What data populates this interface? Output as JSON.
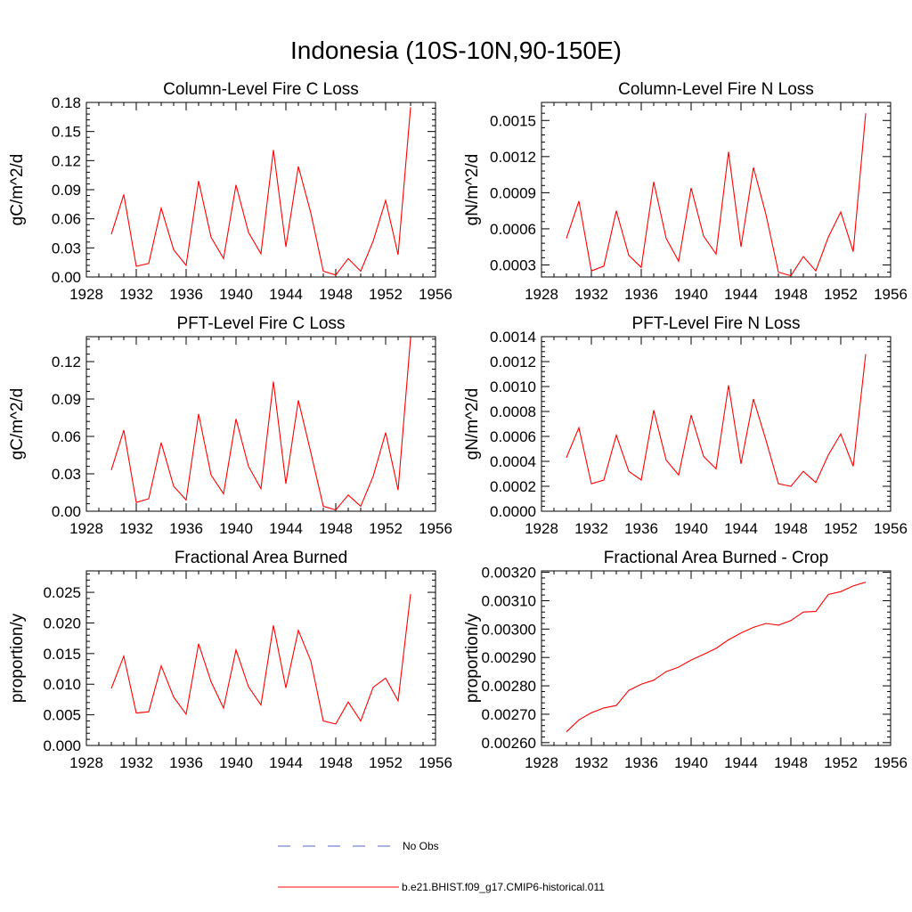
{
  "title": "Indonesia (10S-10N,90-150E)",
  "colors": {
    "model": "#ff0000",
    "obs": "#5566cc",
    "axis": "#000000"
  },
  "legend": {
    "obs_label": "No Obs",
    "model_label": "b.e21.BHIST.f09_g17.CMIP6-historical.011"
  },
  "chart_data": [
    {
      "type": "line",
      "title": "Column-Level Fire C Loss",
      "ylabel": "gC/m^2/d",
      "xlim": [
        1928,
        1956
      ],
      "ylim": [
        0,
        0.18
      ],
      "xticks": [
        "1928",
        "1932",
        "1936",
        "1940",
        "1944",
        "1948",
        "1952",
        "1956"
      ],
      "yticks": [
        "0.00",
        "0.03",
        "0.06",
        "0.09",
        "0.12",
        "0.15",
        "0.18"
      ],
      "series": [
        {
          "x": [
            1930,
            1931,
            1932,
            1933,
            1934,
            1935,
            1936,
            1937,
            1938,
            1939,
            1940,
            1941,
            1942,
            1943,
            1944,
            1945,
            1946,
            1947,
            1948,
            1949,
            1950,
            1951,
            1952,
            1953,
            1954
          ],
          "values": [
            0.044,
            0.085,
            0.011,
            0.014,
            0.071,
            0.028,
            0.012,
            0.099,
            0.041,
            0.019,
            0.095,
            0.046,
            0.024,
            0.131,
            0.031,
            0.114,
            0.066,
            0.006,
            0.002,
            0.019,
            0.006,
            0.037,
            0.079,
            0.023,
            0.175
          ]
        }
      ]
    },
    {
      "type": "line",
      "title": "Column-Level Fire N Loss",
      "ylabel": "gN/m^2/d",
      "xlim": [
        1928,
        1956
      ],
      "ylim": [
        0.0002,
        0.00165
      ],
      "xticks": [
        "1928",
        "1932",
        "1936",
        "1940",
        "1944",
        "1948",
        "1952",
        "1956"
      ],
      "yticks": [
        "0.0003",
        "0.0006",
        "0.0009",
        "0.0012",
        "0.0015"
      ],
      "series": [
        {
          "x": [
            1930,
            1931,
            1932,
            1933,
            1934,
            1935,
            1936,
            1937,
            1938,
            1939,
            1940,
            1941,
            1942,
            1943,
            1944,
            1945,
            1946,
            1947,
            1948,
            1949,
            1950,
            1951,
            1952,
            1953,
            1954
          ],
          "values": [
            0.00052,
            0.00083,
            0.00025,
            0.00029,
            0.00075,
            0.00038,
            0.00028,
            0.00099,
            0.00052,
            0.00033,
            0.00094,
            0.00054,
            0.00039,
            0.00124,
            0.00045,
            0.00111,
            0.00072,
            0.00024,
            0.00021,
            0.00037,
            0.00025,
            0.00053,
            0.00074,
            0.00041,
            0.00156
          ]
        }
      ]
    },
    {
      "type": "line",
      "title": "PFT-Level Fire C Loss",
      "ylabel": "gC/m^2/d",
      "xlim": [
        1928,
        1956
      ],
      "ylim": [
        0,
        0.14
      ],
      "xticks": [
        "1928",
        "1932",
        "1936",
        "1940",
        "1944",
        "1948",
        "1952",
        "1956"
      ],
      "yticks": [
        "0.00",
        "0.03",
        "0.06",
        "0.09",
        "0.12"
      ],
      "series": [
        {
          "x": [
            1930,
            1931,
            1932,
            1933,
            1934,
            1935,
            1936,
            1937,
            1938,
            1939,
            1940,
            1941,
            1942,
            1943,
            1944,
            1945,
            1946,
            1947,
            1948,
            1949,
            1950,
            1951,
            1952,
            1953,
            1954
          ],
          "values": [
            0.033,
            0.065,
            0.007,
            0.01,
            0.055,
            0.02,
            0.009,
            0.078,
            0.029,
            0.014,
            0.074,
            0.036,
            0.018,
            0.104,
            0.022,
            0.089,
            0.047,
            0.004,
            0.001,
            0.013,
            0.004,
            0.028,
            0.063,
            0.017,
            0.139
          ]
        }
      ]
    },
    {
      "type": "line",
      "title": "PFT-Level Fire N Loss",
      "ylabel": "gN/m^2/d",
      "xlim": [
        1928,
        1956
      ],
      "ylim": [
        0,
        0.0014
      ],
      "xticks": [
        "1928",
        "1932",
        "1936",
        "1940",
        "1944",
        "1948",
        "1952",
        "1956"
      ],
      "yticks": [
        "0.0000",
        "0.0002",
        "0.0004",
        "0.0006",
        "0.0008",
        "0.0010",
        "0.0012",
        "0.0014"
      ],
      "series": [
        {
          "x": [
            1930,
            1931,
            1932,
            1933,
            1934,
            1935,
            1936,
            1937,
            1938,
            1939,
            1940,
            1941,
            1942,
            1943,
            1944,
            1945,
            1946,
            1947,
            1948,
            1949,
            1950,
            1951,
            1952,
            1953,
            1954
          ],
          "values": [
            0.00043,
            0.00067,
            0.00022,
            0.00025,
            0.00061,
            0.00032,
            0.00025,
            0.00081,
            0.00041,
            0.00029,
            0.00077,
            0.00044,
            0.00034,
            0.00101,
            0.00038,
            0.0009,
            0.00057,
            0.00022,
            0.0002,
            0.00032,
            0.00023,
            0.00045,
            0.00062,
            0.00036,
            0.00126
          ]
        }
      ]
    },
    {
      "type": "line",
      "title": "Fractional Area Burned",
      "ylabel": "proportion/y",
      "xlim": [
        1928,
        1956
      ],
      "ylim": [
        0,
        0.0285
      ],
      "xticks": [
        "1928",
        "1932",
        "1936",
        "1940",
        "1944",
        "1948",
        "1952",
        "1956"
      ],
      "yticks": [
        "0.000",
        "0.005",
        "0.010",
        "0.015",
        "0.020",
        "0.025"
      ],
      "series": [
        {
          "x": [
            1930,
            1931,
            1932,
            1933,
            1934,
            1935,
            1936,
            1937,
            1938,
            1939,
            1940,
            1941,
            1942,
            1943,
            1944,
            1945,
            1946,
            1947,
            1948,
            1949,
            1950,
            1951,
            1952,
            1953,
            1954
          ],
          "values": [
            0.0093,
            0.0146,
            0.0053,
            0.0055,
            0.013,
            0.0079,
            0.0051,
            0.0166,
            0.0104,
            0.0061,
            0.0156,
            0.0096,
            0.0066,
            0.0196,
            0.0094,
            0.0188,
            0.0138,
            0.004,
            0.0035,
            0.0071,
            0.004,
            0.0095,
            0.011,
            0.0073,
            0.0247
          ]
        }
      ]
    },
    {
      "type": "line",
      "title": "Fractional Area Burned - Crop",
      "ylabel": "proportion/y",
      "xlim": [
        1928,
        1956
      ],
      "ylim": [
        0.00259,
        0.003205
      ],
      "xticks": [
        "1928",
        "1932",
        "1936",
        "1940",
        "1944",
        "1948",
        "1952",
        "1956"
      ],
      "yticks": [
        "0.00260",
        "0.00270",
        "0.00280",
        "0.00290",
        "0.00300",
        "0.00310",
        "0.00320"
      ],
      "series": [
        {
          "x": [
            1930,
            1931,
            1932,
            1933,
            1934,
            1935,
            1936,
            1937,
            1938,
            1939,
            1940,
            1941,
            1942,
            1943,
            1944,
            1945,
            1946,
            1947,
            1948,
            1949,
            1950,
            1951,
            1952,
            1953,
            1954
          ],
          "values": [
            0.002638,
            0.00268,
            0.002705,
            0.002722,
            0.002731,
            0.002784,
            0.002806,
            0.00282,
            0.00285,
            0.002866,
            0.002891,
            0.002911,
            0.002932,
            0.002962,
            0.002986,
            0.003006,
            0.00302,
            0.003014,
            0.00303,
            0.00306,
            0.003062,
            0.003122,
            0.003132,
            0.003152,
            0.003165
          ]
        }
      ]
    }
  ]
}
